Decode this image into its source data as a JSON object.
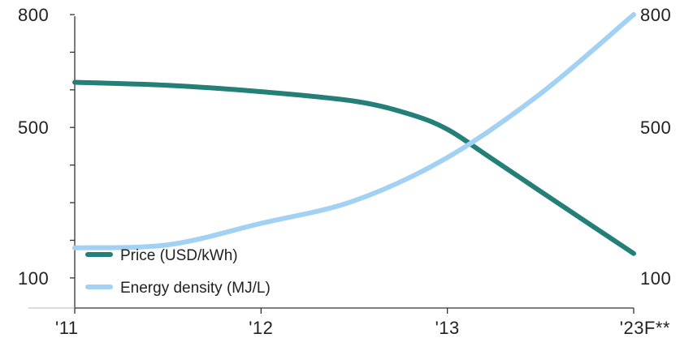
{
  "chart_data": {
    "type": "line",
    "title": "",
    "xlabel": "",
    "ylabel": "",
    "categories": [
      "'11",
      "'12",
      "'13",
      "'23F**"
    ],
    "ylim": [
      20,
      800
    ],
    "y_ticks_left": [
      800,
      500,
      100
    ],
    "y_ticks_right": [
      800,
      500,
      100
    ],
    "y2lim": [
      20,
      800
    ],
    "grid": false,
    "legend_position": "bottom-left",
    "series": [
      {
        "name": "Price (USD/kWh)",
        "color": "#237f77",
        "axis": "left",
        "points": [
          {
            "x": 0.0,
            "y": 620
          },
          {
            "x": 0.5,
            "y": 612
          },
          {
            "x": 1.0,
            "y": 595
          },
          {
            "x": 1.5,
            "y": 570
          },
          {
            "x": 1.8,
            "y": 535
          },
          {
            "x": 2.0,
            "y": 495
          },
          {
            "x": 2.2,
            "y": 430
          },
          {
            "x": 2.5,
            "y": 330
          },
          {
            "x": 3.0,
            "y": 165
          }
        ]
      },
      {
        "name": "Energy density (MJ/L)",
        "color": "#a3d1f3",
        "axis": "right",
        "points": [
          {
            "x": 0.0,
            "y": 180
          },
          {
            "x": 0.5,
            "y": 188
          },
          {
            "x": 1.0,
            "y": 245
          },
          {
            "x": 1.5,
            "y": 305
          },
          {
            "x": 2.0,
            "y": 420
          },
          {
            "x": 2.5,
            "y": 590
          },
          {
            "x": 3.0,
            "y": 800
          }
        ]
      }
    ]
  }
}
